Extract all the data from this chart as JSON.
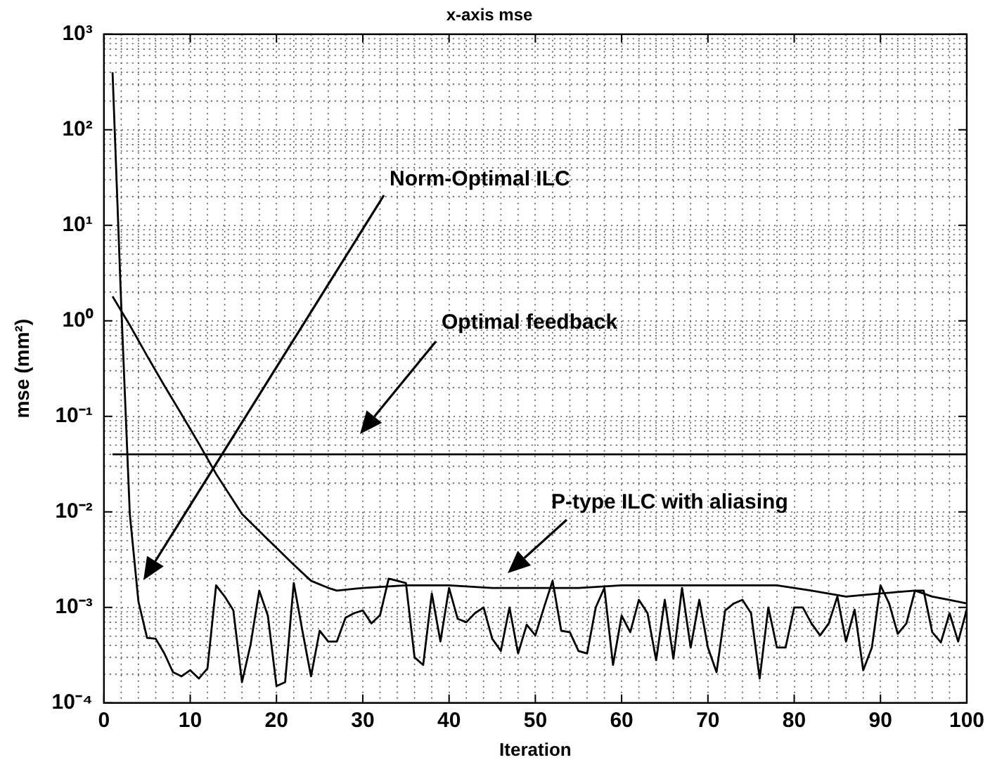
{
  "chart_data": {
    "type": "line",
    "title": "x-axis mse",
    "xlabel": "Iteration",
    "ylabel": "mse (mm²)",
    "log": "y",
    "grid": true,
    "line_style": "solid",
    "marker": "none",
    "xlim": [
      0,
      100
    ],
    "xticks": [
      0,
      10,
      20,
      30,
      40,
      50,
      60,
      70,
      80,
      90,
      100
    ],
    "ylim": [
      0.0001,
      1000
    ],
    "yticks": [
      {
        "value": 0.0001,
        "label": "10⁻⁴"
      },
      {
        "value": 0.001,
        "label": "10⁻³"
      },
      {
        "value": 0.01,
        "label": "10⁻²"
      },
      {
        "value": 0.1,
        "label": "10⁻¹"
      },
      {
        "value": 1,
        "label": "10⁰"
      },
      {
        "value": 10,
        "label": "10¹"
      },
      {
        "value": 100,
        "label": "10²"
      },
      {
        "value": 1000,
        "label": "10³"
      }
    ],
    "series": [
      {
        "color": "#000000",
        "x": [
          1,
          2,
          3,
          4,
          5,
          6,
          7,
          8,
          9,
          10,
          11,
          12,
          13,
          14,
          15,
          16,
          17,
          18,
          19,
          20,
          21,
          22,
          23,
          24,
          25,
          26,
          27,
          28,
          29,
          30,
          31,
          32,
          33,
          34,
          35,
          36,
          37,
          38,
          39,
          40,
          41,
          42,
          43,
          44,
          45,
          46,
          47,
          48,
          49,
          50,
          51,
          52,
          53,
          54,
          55,
          56,
          57,
          58,
          59,
          60,
          61,
          62,
          63,
          64,
          65,
          66,
          67,
          68,
          69,
          70,
          71,
          72,
          73,
          74,
          75,
          76,
          77,
          78,
          79,
          80,
          81,
          82,
          83,
          84,
          85,
          86,
          87,
          88,
          89,
          90,
          91,
          92,
          93,
          94,
          95,
          96,
          97,
          98,
          99,
          100
        ],
        "values": [
          400,
          1.5,
          0.0095,
          0.00115,
          0.00048,
          0.00047,
          0.00033,
          0.00021,
          0.00019,
          0.00022,
          0.00018,
          0.00023,
          0.0017,
          0.0013,
          0.00093,
          0.000165,
          0.00041,
          0.0015,
          0.00082,
          0.00015,
          0.000165,
          0.0018,
          0.00057,
          0.00019,
          0.00057,
          0.00044,
          0.00044,
          0.00078,
          0.00087,
          0.00093,
          0.00068,
          0.00083,
          0.002,
          0.0019,
          0.0018,
          0.0003,
          0.00025,
          0.0014,
          0.00044,
          0.0016,
          0.00076,
          0.0007,
          0.00087,
          0.001,
          0.00047,
          0.00035,
          0.001,
          0.00033,
          0.00066,
          0.00051,
          0.001,
          0.0019,
          0.00057,
          0.00055,
          0.00035,
          0.00033,
          0.001,
          0.0016,
          0.00025,
          0.00082,
          0.00055,
          0.0012,
          0.00087,
          0.00028,
          0.0012,
          0.00029,
          0.0016,
          0.00038,
          0.0012,
          0.00038,
          0.00021,
          0.00093,
          0.0011,
          0.0012,
          0.00087,
          0.00018,
          0.001,
          0.00038,
          0.00038,
          0.001,
          0.001,
          0.00068,
          0.00051,
          0.00068,
          0.0013,
          0.00044,
          0.00095,
          0.00022,
          0.00038,
          0.0017,
          0.0011,
          0.00053,
          0.00068,
          0.0015,
          0.0015,
          0.00055,
          0.00043,
          0.00087,
          0.00044,
          0.00095
        ]
      },
      {
        "color": "#000000",
        "x": [
          1,
          3,
          5,
          7,
          9,
          11,
          13,
          16,
          18,
          20,
          22,
          24,
          26,
          27,
          30,
          35,
          40,
          45,
          50,
          55,
          60,
          65,
          70,
          75,
          78,
          82,
          86,
          90,
          94,
          96,
          98,
          100
        ],
        "values": [
          1.8,
          0.9,
          0.43,
          0.21,
          0.105,
          0.052,
          0.025,
          0.0095,
          0.0063,
          0.0042,
          0.0028,
          0.0019,
          0.0016,
          0.0015,
          0.0016,
          0.0017,
          0.0017,
          0.0016,
          0.0016,
          0.0016,
          0.0017,
          0.0017,
          0.0017,
          0.0017,
          0.0017,
          0.0015,
          0.0013,
          0.0014,
          0.0015,
          0.0013,
          0.0012,
          0.0011
        ]
      },
      {
        "color": "#000000",
        "x": [
          1,
          10,
          20,
          30,
          40,
          50,
          60,
          70,
          80,
          90,
          100
        ],
        "values": [
          0.04,
          0.04,
          0.04,
          0.04,
          0.04,
          0.04,
          0.04,
          0.04,
          0.04,
          0.04,
          0.04
        ]
      }
    ],
    "annotations": [
      "Norm-Optimal ILC",
      "Optimal feedback",
      "P-type ILC with aliasing"
    ]
  }
}
